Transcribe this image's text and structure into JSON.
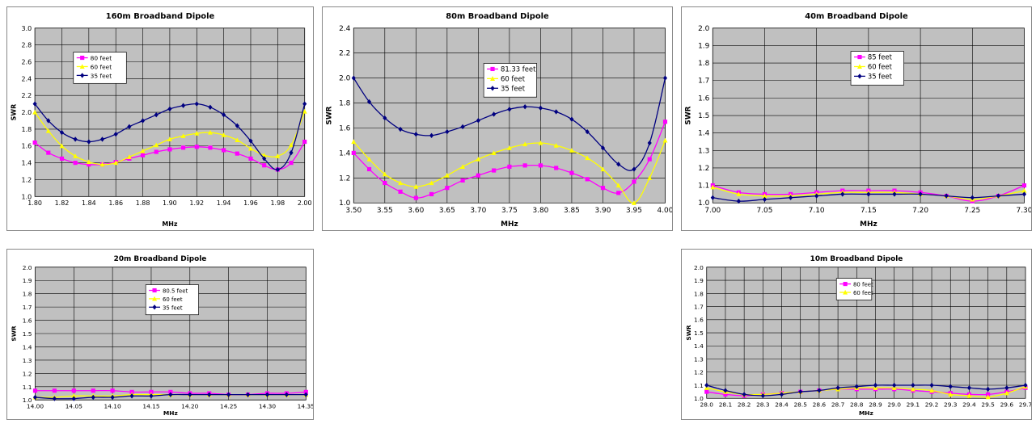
{
  "chart_data": [
    {
      "id": "c160",
      "type": "line",
      "title": "160m Broadband Dipole",
      "xlabel": "MHz",
      "ylabel": "SWR",
      "xlim": [
        1.8,
        2.0
      ],
      "ylim": [
        1.0,
        3.0
      ],
      "xticks": [
        "1.80",
        "1.82",
        "1.84",
        "1.86",
        "1.88",
        "1.90",
        "1.92",
        "1.94",
        "1.96",
        "1.98",
        "2.00"
      ],
      "yticks": [
        "1.0",
        "1.2",
        "1.4",
        "1.6",
        "1.8",
        "2.0",
        "2.2",
        "2.4",
        "2.6",
        "2.8",
        "3.0"
      ],
      "grid": true,
      "legend": "top-left",
      "series": [
        {
          "name": "80 feet",
          "color": "#ff00ff",
          "marker": "square",
          "x": [
            1.8,
            1.81,
            1.82,
            1.83,
            1.84,
            1.85,
            1.86,
            1.87,
            1.88,
            1.89,
            1.9,
            1.91,
            1.92,
            1.93,
            1.94,
            1.95,
            1.96,
            1.97,
            1.98,
            1.99,
            2.0
          ],
          "y": [
            1.64,
            1.52,
            1.45,
            1.4,
            1.38,
            1.38,
            1.41,
            1.45,
            1.49,
            1.53,
            1.56,
            1.58,
            1.59,
            1.58,
            1.55,
            1.51,
            1.45,
            1.37,
            1.32,
            1.4,
            1.65
          ]
        },
        {
          "name": "60 feet",
          "color": "#ffff00",
          "marker": "triangle",
          "x": [
            1.8,
            1.81,
            1.82,
            1.83,
            1.84,
            1.85,
            1.86,
            1.87,
            1.88,
            1.89,
            1.9,
            1.91,
            1.92,
            1.93,
            1.94,
            1.95,
            1.96,
            1.97,
            1.98,
            1.99,
            2.0
          ],
          "y": [
            2.0,
            1.78,
            1.6,
            1.48,
            1.41,
            1.38,
            1.4,
            1.47,
            1.54,
            1.61,
            1.68,
            1.72,
            1.75,
            1.76,
            1.73,
            1.67,
            1.57,
            1.49,
            1.48,
            1.61,
            2.01
          ]
        },
        {
          "name": "35 feet",
          "color": "#000080",
          "marker": "diamond",
          "x": [
            1.8,
            1.81,
            1.82,
            1.83,
            1.84,
            1.85,
            1.86,
            1.87,
            1.88,
            1.89,
            1.9,
            1.91,
            1.92,
            1.93,
            1.94,
            1.95,
            1.96,
            1.97,
            1.98,
            1.99,
            2.0
          ],
          "y": [
            2.1,
            1.9,
            1.76,
            1.68,
            1.65,
            1.68,
            1.74,
            1.83,
            1.9,
            1.97,
            2.04,
            2.08,
            2.1,
            2.06,
            1.97,
            1.84,
            1.66,
            1.45,
            1.32,
            1.52,
            2.1
          ]
        }
      ]
    },
    {
      "id": "c80",
      "type": "line",
      "title": "80m Broadband Dipole",
      "xlabel": "MHz",
      "ylabel": "SWR",
      "xlim": [
        3.5,
        4.0
      ],
      "ylim": [
        1.0,
        2.4
      ],
      "xticks": [
        "3.50",
        "3.55",
        "3.60",
        "3.65",
        "3.70",
        "3.75",
        "3.80",
        "3.85",
        "3.90",
        "3.95",
        "4.00"
      ],
      "yticks": [
        "1.0",
        "1.2",
        "1.4",
        "1.6",
        "1.8",
        "2.0",
        "2.2",
        "2.4"
      ],
      "grid": true,
      "legend": "top-center",
      "series": [
        {
          "name": "81.33 feet",
          "color": "#ff00ff",
          "marker": "square",
          "x": [
            3.5,
            3.525,
            3.55,
            3.575,
            3.6,
            3.625,
            3.65,
            3.675,
            3.7,
            3.725,
            3.75,
            3.775,
            3.8,
            3.825,
            3.85,
            3.875,
            3.9,
            3.925,
            3.95,
            3.975,
            4.0
          ],
          "y": [
            1.4,
            1.27,
            1.16,
            1.09,
            1.04,
            1.07,
            1.12,
            1.18,
            1.22,
            1.26,
            1.29,
            1.3,
            1.3,
            1.28,
            1.24,
            1.19,
            1.12,
            1.08,
            1.17,
            1.35,
            1.65
          ]
        },
        {
          "name": "60 feet",
          "color": "#ffff00",
          "marker": "triangle",
          "x": [
            3.5,
            3.525,
            3.55,
            3.575,
            3.6,
            3.625,
            3.65,
            3.675,
            3.7,
            3.725,
            3.75,
            3.775,
            3.8,
            3.825,
            3.85,
            3.875,
            3.9,
            3.925,
            3.95,
            3.975,
            4.0
          ],
          "y": [
            1.49,
            1.35,
            1.23,
            1.16,
            1.13,
            1.16,
            1.22,
            1.29,
            1.35,
            1.4,
            1.44,
            1.47,
            1.48,
            1.46,
            1.42,
            1.36,
            1.27,
            1.14,
            1.0,
            1.2,
            1.5
          ]
        },
        {
          "name": "35 feet",
          "color": "#000080",
          "marker": "diamond",
          "x": [
            3.5,
            3.525,
            3.55,
            3.575,
            3.6,
            3.625,
            3.65,
            3.675,
            3.7,
            3.725,
            3.75,
            3.775,
            3.8,
            3.825,
            3.85,
            3.875,
            3.9,
            3.925,
            3.95,
            3.975,
            4.0
          ],
          "y": [
            2.0,
            1.81,
            1.68,
            1.59,
            1.55,
            1.54,
            1.57,
            1.61,
            1.66,
            1.71,
            1.75,
            1.77,
            1.76,
            1.73,
            1.67,
            1.57,
            1.44,
            1.31,
            1.27,
            1.48,
            2.0
          ]
        }
      ]
    },
    {
      "id": "c40",
      "type": "line",
      "title": "40m Broadband Dipole",
      "xlabel": "MHz",
      "ylabel": "SWR",
      "xlim": [
        7.0,
        7.3
      ],
      "ylim": [
        1.0,
        2.0
      ],
      "xticks": [
        "7.00",
        "7.05",
        "7.10",
        "7.15",
        "7.20",
        "7.25",
        "7.30"
      ],
      "yticks": [
        "1.0",
        "1.1",
        "1.2",
        "1.3",
        "1.4",
        "1.5",
        "1.6",
        "1.7",
        "1.8",
        "1.9",
        "2.0"
      ],
      "grid": true,
      "legend": "top-center",
      "series": [
        {
          "name": "85 feet",
          "color": "#ff00ff",
          "marker": "square",
          "x": [
            7.0,
            7.025,
            7.05,
            7.075,
            7.1,
            7.125,
            7.15,
            7.175,
            7.2,
            7.225,
            7.25,
            7.275,
            7.3
          ],
          "y": [
            1.1,
            1.06,
            1.05,
            1.05,
            1.06,
            1.07,
            1.07,
            1.07,
            1.06,
            1.04,
            1.01,
            1.04,
            1.1
          ]
        },
        {
          "name": "60 feet",
          "color": "#ffff00",
          "marker": "triangle",
          "x": [
            7.0,
            7.025,
            7.05,
            7.075,
            7.1,
            7.125,
            7.15,
            7.175,
            7.2,
            7.225,
            7.25,
            7.275,
            7.3
          ],
          "y": [
            1.09,
            1.05,
            1.04,
            1.04,
            1.05,
            1.06,
            1.06,
            1.06,
            1.05,
            1.04,
            1.02,
            1.04,
            1.07
          ]
        },
        {
          "name": "35 feet",
          "color": "#000080",
          "marker": "diamond",
          "x": [
            7.0,
            7.025,
            7.05,
            7.075,
            7.1,
            7.125,
            7.15,
            7.175,
            7.2,
            7.225,
            7.25,
            7.275,
            7.3
          ],
          "y": [
            1.03,
            1.01,
            1.02,
            1.03,
            1.04,
            1.05,
            1.05,
            1.05,
            1.05,
            1.04,
            1.03,
            1.04,
            1.05
          ]
        }
      ]
    },
    {
      "id": "c20",
      "type": "line",
      "title": "20m Broadband Dipole",
      "xlabel": "MHz",
      "ylabel": "SWR",
      "xlim": [
        14.0,
        14.35
      ],
      "ylim": [
        1.0,
        2.0
      ],
      "xticks": [
        "14.00",
        "14.05",
        "14.10",
        "14.15",
        "14.20",
        "14.25",
        "14.30",
        "14.35"
      ],
      "yticks": [
        "1.0",
        "1.1",
        "1.2",
        "1.3",
        "1.4",
        "1.5",
        "1.6",
        "1.7",
        "1.8",
        "1.9",
        "2.0"
      ],
      "grid": true,
      "legend": "top-center",
      "series": [
        {
          "name": "80.5 feet",
          "color": "#ff00ff",
          "marker": "square",
          "x": [
            14.0,
            14.025,
            14.05,
            14.075,
            14.1,
            14.125,
            14.15,
            14.175,
            14.2,
            14.225,
            14.25,
            14.275,
            14.3,
            14.325,
            14.35
          ],
          "y": [
            1.07,
            1.07,
            1.07,
            1.07,
            1.07,
            1.06,
            1.06,
            1.06,
            1.05,
            1.05,
            1.04,
            1.04,
            1.05,
            1.05,
            1.06
          ]
        },
        {
          "name": "60 feet",
          "color": "#ffff00",
          "marker": "triangle",
          "x": [
            14.0,
            14.025,
            14.05,
            14.075,
            14.1,
            14.125,
            14.15,
            14.175,
            14.2,
            14.225,
            14.25,
            14.275,
            14.3,
            14.325,
            14.35
          ],
          "y": [
            1.02,
            1.02,
            1.03,
            1.03,
            1.03,
            1.04,
            1.04,
            1.04,
            1.04,
            1.04,
            1.04,
            1.04,
            1.04,
            1.04,
            1.04
          ]
        },
        {
          "name": "35 feet",
          "color": "#000080",
          "marker": "diamond",
          "x": [
            14.0,
            14.025,
            14.05,
            14.075,
            14.1,
            14.125,
            14.15,
            14.175,
            14.2,
            14.225,
            14.25,
            14.275,
            14.3,
            14.325,
            14.35
          ],
          "y": [
            1.02,
            1.01,
            1.01,
            1.02,
            1.02,
            1.03,
            1.03,
            1.04,
            1.04,
            1.04,
            1.04,
            1.04,
            1.04,
            1.04,
            1.04
          ]
        }
      ]
    },
    {
      "id": "c10",
      "type": "line",
      "title": "10m Broadband Dipole",
      "xlabel": "MHz",
      "ylabel": "SWR",
      "xlim": [
        28.0,
        29.7
      ],
      "ylim": [
        1.0,
        2.0
      ],
      "xticks": [
        "28.0",
        "28.1",
        "28.2",
        "28.3",
        "28.4",
        "28.5",
        "28.6",
        "28.7",
        "28.8",
        "28.9",
        "29.0",
        "29.1",
        "29.2",
        "29.3",
        "29.4",
        "29.5",
        "29.6",
        "29.7"
      ],
      "yticks": [
        "1.0",
        "1.1",
        "1.2",
        "1.3",
        "1.4",
        "1.5",
        "1.6",
        "1.7",
        "1.8",
        "1.9",
        "2.0"
      ],
      "grid": true,
      "legend": "top-left",
      "series": [
        {
          "name": "80 feet",
          "color": "#ff00ff",
          "marker": "square",
          "x": [
            28.0,
            28.1,
            28.2,
            28.3,
            28.4,
            28.5,
            28.6,
            28.7,
            28.8,
            28.9,
            29.0,
            29.1,
            29.2,
            29.3,
            29.4,
            29.5,
            29.6,
            29.7
          ],
          "y": [
            1.05,
            1.03,
            1.02,
            1.03,
            1.04,
            1.05,
            1.06,
            1.07,
            1.07,
            1.07,
            1.07,
            1.06,
            1.05,
            1.04,
            1.03,
            1.03,
            1.05,
            1.08
          ]
        },
        {
          "name": "60 feet",
          "color": "#ffff00",
          "marker": "triangle",
          "x": [
            28.0,
            28.1,
            28.2,
            28.3,
            28.4,
            28.5,
            28.6,
            28.7,
            28.8,
            28.9,
            29.0,
            29.1,
            29.2,
            29.3,
            29.4,
            29.5,
            29.6,
            29.7
          ],
          "y": [
            1.08,
            1.05,
            1.03,
            1.03,
            1.04,
            1.05,
            1.06,
            1.07,
            1.08,
            1.08,
            1.08,
            1.07,
            1.06,
            1.03,
            1.02,
            1.01,
            1.04,
            1.09
          ]
        },
        {
          "name": "",
          "color": "#000080",
          "marker": "diamond",
          "x": [
            28.0,
            28.1,
            28.2,
            28.3,
            28.4,
            28.5,
            28.6,
            28.7,
            28.8,
            28.9,
            29.0,
            29.1,
            29.2,
            29.3,
            29.4,
            29.5,
            29.6,
            29.7
          ],
          "y": [
            1.1,
            1.06,
            1.03,
            1.02,
            1.03,
            1.05,
            1.06,
            1.08,
            1.09,
            1.1,
            1.1,
            1.1,
            1.1,
            1.09,
            1.08,
            1.07,
            1.08,
            1.1
          ]
        }
      ]
    }
  ]
}
